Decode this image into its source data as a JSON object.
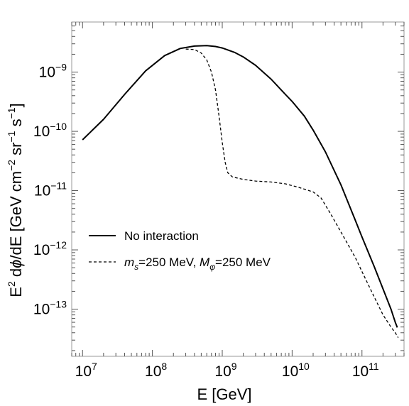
{
  "chart_data": {
    "type": "line",
    "title": "",
    "xlabel": "E [GeV]",
    "ylabel_parts": [
      "E",
      "2",
      " d",
      "ϕ",
      "/dE [GeV cm",
      "−2",
      " sr",
      "−1",
      " s",
      "−1",
      "]"
    ],
    "x_scale": "log",
    "y_scale": "log",
    "xlim": [
      7000000.0,
      400000000000.0
    ],
    "ylim": [
      1.6e-14,
      7e-09
    ],
    "x_ticks": [
      {
        "value": 10000000.0,
        "base": "10",
        "exp": "7"
      },
      {
        "value": 100000000.0,
        "base": "10",
        "exp": "8"
      },
      {
        "value": 1000000000.0,
        "base": "10",
        "exp": "9"
      },
      {
        "value": 10000000000.0,
        "base": "10",
        "exp": "10"
      },
      {
        "value": 100000000000.0,
        "base": "10",
        "exp": "11"
      }
    ],
    "y_ticks": [
      {
        "value": 1e-09,
        "base": "10",
        "exp": "−9"
      },
      {
        "value": 1e-10,
        "base": "10",
        "exp": "−10"
      },
      {
        "value": 1e-11,
        "base": "10",
        "exp": "−11"
      },
      {
        "value": 1e-12,
        "base": "10",
        "exp": "−12"
      },
      {
        "value": 1e-13,
        "base": "10",
        "exp": "−13"
      }
    ],
    "grid": false,
    "legend_position": "lower-left",
    "series": [
      {
        "name": "No interaction",
        "style": "solid",
        "color": "#000000",
        "x": [
          10000000.0,
          20000000.0,
          40000000.0,
          80000000.0,
          150000000.0,
          250000000.0,
          400000000.0,
          600000000.0,
          800000000.0,
          1000000000.0,
          1500000000.0,
          2000000000.0,
          3000000000.0,
          5000000000.0,
          8000000000.0,
          10000000000.0,
          15000000000.0,
          20000000000.0,
          30000000000.0,
          50000000000.0,
          80000000000.0,
          100000000000.0,
          150000000000.0,
          200000000000.0,
          260000000000.0,
          300000000000.0,
          320000000000.0
        ],
        "y": [
          7.2e-11,
          1.6e-10,
          4.2e-10,
          1.05e-09,
          1.9e-09,
          2.5e-09,
          2.75e-09,
          2.8e-09,
          2.7e-09,
          2.55e-09,
          2.15e-09,
          1.8e-09,
          1.3e-09,
          7.6e-10,
          4.2e-10,
          3.2e-10,
          1.8e-10,
          1.05e-10,
          4.5e-11,
          1.25e-11,
          3.2e-12,
          1.65e-12,
          5.2e-13,
          2.2e-13,
          1e-13,
          6e-14,
          4.9e-14
        ]
      },
      {
        "name_parts": [
          "m",
          "s",
          "=250 MeV, ",
          "M",
          "φ",
          "=250 MeV"
        ],
        "style": "dashed",
        "color": "#000000",
        "x": [
          300000000.0,
          400000000.0,
          500000000.0,
          600000000.0,
          700000000.0,
          800000000.0,
          900000000.0,
          1000000000.0,
          1100000000.0,
          1200000000.0,
          1400000000.0,
          2000000000.0,
          3000000000.0,
          5000000000.0,
          8000000000.0,
          12000000000.0,
          20000000000.0,
          26000000000.0,
          35000000000.0,
          50000000000.0,
          80000000000.0,
          100000000000.0,
          150000000000.0,
          200000000000.0,
          260000000000.0,
          300000000000.0,
          330000000000.0
        ],
        "y": [
          2.45e-09,
          2.4e-09,
          2.1e-09,
          1.6e-09,
          1e-09,
          5e-10,
          1.8e-10,
          6.5e-11,
          3e-11,
          2e-11,
          1.7e-11,
          1.55e-11,
          1.45e-11,
          1.4e-11,
          1.3e-11,
          1.15e-11,
          9.5e-12,
          7.5e-12,
          4.2e-12,
          2e-12,
          7.5e-13,
          4.3e-13,
          1.6e-13,
          8e-14,
          5e-14,
          4e-14,
          3.3e-14
        ]
      }
    ]
  }
}
